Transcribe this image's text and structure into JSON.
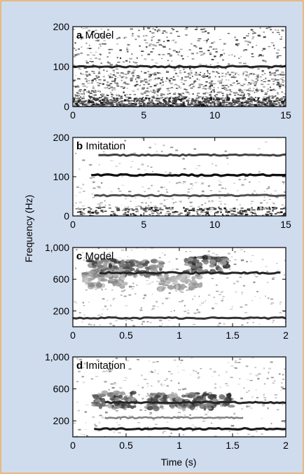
{
  "figure": {
    "background_color": "#cfdcee",
    "border_color": "#e8a65a",
    "ylabel": "Frequency (Hz)",
    "xlabel": "Time (s)"
  },
  "chart_data": [
    {
      "type": "heatmap",
      "panel_letter": "a",
      "panel_title": "Model",
      "xlim": [
        0,
        15
      ],
      "ylim": [
        0,
        200
      ],
      "x_ticks": [
        0,
        5,
        10,
        15
      ],
      "y_ticks": [
        0,
        100,
        200
      ],
      "x_tick_labels": [
        "0",
        "5",
        "10",
        "15"
      ],
      "y_tick_labels": [
        "0",
        "100",
        "200"
      ],
      "show_x_tick_labels": true,
      "colormap": "grayscale",
      "harmonics": [
        {
          "frequency": 100,
          "start": 0,
          "end": 15,
          "intensity": 0.85
        }
      ],
      "noise_level": "high",
      "low_freq_energy": "high"
    },
    {
      "type": "heatmap",
      "panel_letter": "b",
      "panel_title": "Imitation",
      "xlim": [
        0,
        15
      ],
      "ylim": [
        0,
        200
      ],
      "x_ticks": [
        0,
        5,
        10,
        15
      ],
      "y_ticks": [
        0,
        100,
        200
      ],
      "x_tick_labels": [
        "0",
        "5",
        "10",
        "15"
      ],
      "y_tick_labels": [
        "0",
        "100",
        "200"
      ],
      "show_x_tick_labels": true,
      "colormap": "grayscale",
      "harmonics": [
        {
          "frequency": 155,
          "start": 1.8,
          "end": 15,
          "intensity": 0.75
        },
        {
          "frequency": 104,
          "start": 1.3,
          "end": 15,
          "intensity": 0.95
        },
        {
          "frequency": 52,
          "start": 1.5,
          "end": 15,
          "intensity": 0.7
        }
      ],
      "noise_level": "low",
      "low_freq_energy": "medium"
    },
    {
      "type": "heatmap",
      "panel_letter": "c",
      "panel_title": "Model",
      "xlim": [
        0,
        2
      ],
      "ylim": [
        0,
        1000
      ],
      "x_ticks": [
        0,
        0.5,
        1,
        1.5,
        2
      ],
      "y_ticks": [
        200,
        600,
        1000
      ],
      "x_tick_labels": [
        "0",
        "0.5",
        "1",
        "1.5",
        "2"
      ],
      "y_tick_labels": [
        "200",
        "600",
        "1,000"
      ],
      "show_x_tick_labels": true,
      "colormap": "grayscale",
      "harmonics": [
        {
          "frequency": 680,
          "start": 0.25,
          "end": 1.95,
          "intensity": 0.85
        },
        {
          "frequency": 110,
          "start": 0,
          "end": 2,
          "intensity": 0.8
        }
      ],
      "blobs": [
        {
          "t": 0.35,
          "f": 760,
          "intensity": 0.9
        },
        {
          "t": 0.65,
          "f": 740,
          "intensity": 0.8
        },
        {
          "t": 1.25,
          "f": 780,
          "intensity": 0.95
        },
        {
          "t": 0.3,
          "f": 600,
          "intensity": 0.6
        },
        {
          "t": 1.0,
          "f": 560,
          "intensity": 0.5
        }
      ],
      "noise_level": "low",
      "low_freq_energy": "low"
    },
    {
      "type": "heatmap",
      "panel_letter": "d",
      "panel_title": "Imitation",
      "xlim": [
        0,
        2
      ],
      "ylim": [
        0,
        1000
      ],
      "x_ticks": [
        0,
        0.5,
        1,
        1.5,
        2
      ],
      "y_ticks": [
        200,
        600,
        1000
      ],
      "x_tick_labels": [
        "0",
        "0.5",
        "1",
        "1.5",
        "2"
      ],
      "y_tick_labels": [
        "200",
        "600",
        "1,000"
      ],
      "show_x_tick_labels": true,
      "colormap": "grayscale",
      "harmonics": [
        {
          "frequency": 430,
          "start": 0.3,
          "end": 2,
          "intensity": 0.85
        },
        {
          "frequency": 240,
          "start": 0.3,
          "end": 1.6,
          "intensity": 0.5
        },
        {
          "frequency": 100,
          "start": 0.2,
          "end": 2,
          "intensity": 0.9
        }
      ],
      "blobs": [
        {
          "t": 0.4,
          "f": 460,
          "intensity": 0.9
        },
        {
          "t": 0.9,
          "f": 440,
          "intensity": 0.85
        },
        {
          "t": 1.3,
          "f": 450,
          "intensity": 0.95
        }
      ],
      "noise_level": "low",
      "low_freq_energy": "low"
    }
  ]
}
